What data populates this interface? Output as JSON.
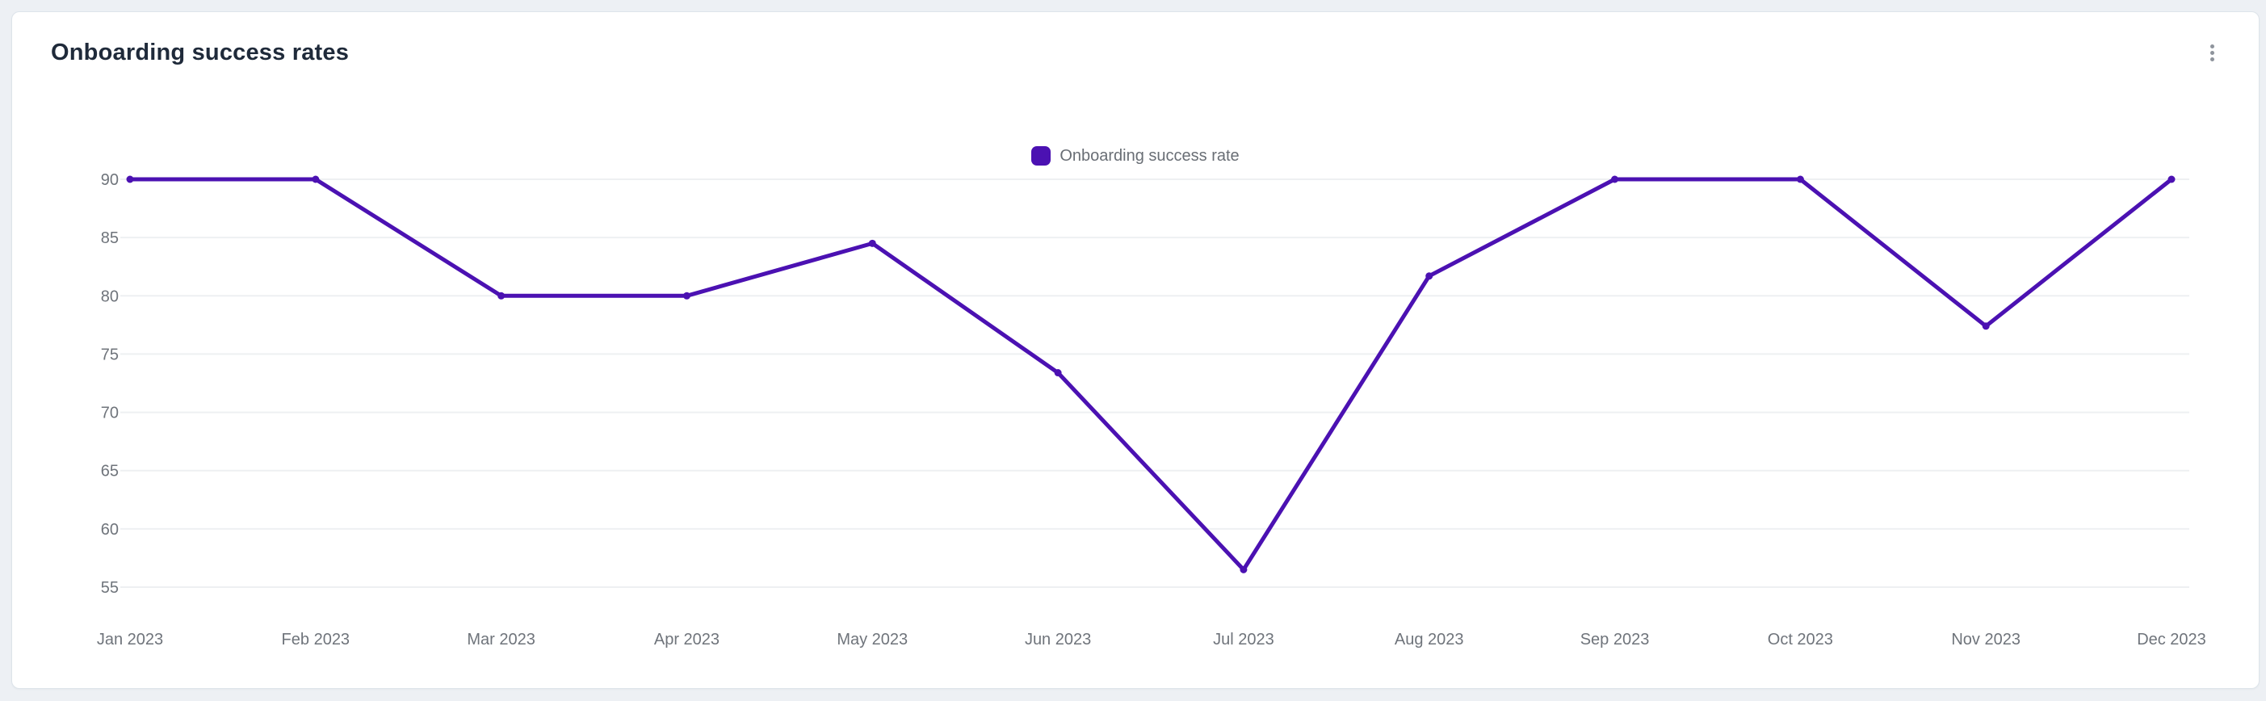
{
  "card": {
    "title": "Onboarding success rates",
    "menu_icon": "kebab-vertical-icon"
  },
  "legend": {
    "label": "Onboarding success rate"
  },
  "colors": {
    "accent": "#4b11b2",
    "title_text": "#1f2a3a",
    "axis_text": "#6f747b",
    "legend_text": "#696e75",
    "gridline": "#eef0f2",
    "card_border": "#dde4ea",
    "page_background": "#edf0f4",
    "menu_icon": "#8e949c"
  },
  "chart_data": {
    "type": "line",
    "title": "Onboarding success rates",
    "categories": [
      "Jan 2023",
      "Feb 2023",
      "Mar 2023",
      "Apr 2023",
      "May 2023",
      "Jun 2023",
      "Jul 2023",
      "Aug 2023",
      "Sep 2023",
      "Oct 2023",
      "Nov 2023",
      "Dec 2023"
    ],
    "series": [
      {
        "name": "Onboarding success rate",
        "values": [
          90,
          90,
          80,
          80,
          84.5,
          73.4,
          56.5,
          81.7,
          90,
          90,
          77.4,
          90
        ]
      }
    ],
    "xlabel": "",
    "ylabel": "",
    "ylim": [
      55,
      90
    ],
    "yticks": [
      55,
      60,
      65,
      70,
      75,
      80,
      85,
      90
    ],
    "grid": "horizontal-only",
    "legend_position": "top-center",
    "marker": "dot"
  }
}
